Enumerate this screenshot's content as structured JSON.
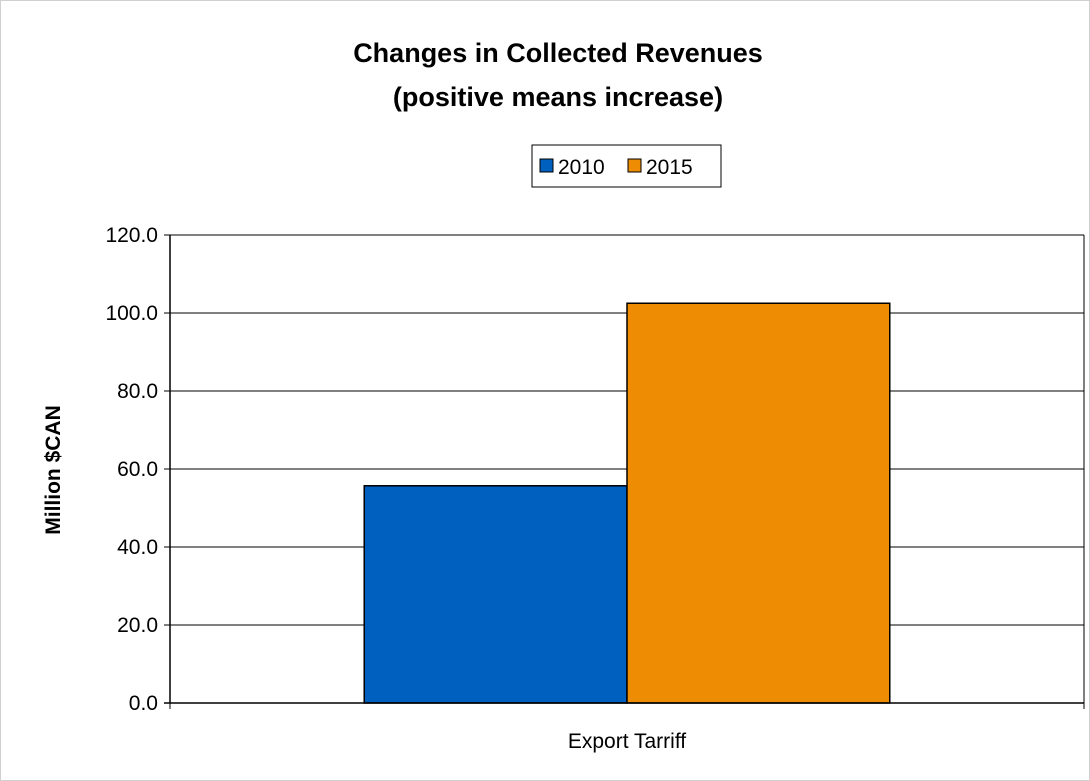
{
  "chart_data": {
    "type": "bar",
    "title": "Changes in Collected Revenues",
    "subtitle": "(positive means increase)",
    "ylabel": "Million $CAN",
    "categories": [
      "Export Tarriff"
    ],
    "series": [
      {
        "name": "2010",
        "values": [
          55.7
        ],
        "color": "#0060C0"
      },
      {
        "name": "2015",
        "values": [
          102.5
        ],
        "color": "#EE8C04"
      }
    ],
    "ylim": [
      0,
      120
    ],
    "yticks": [
      "0.0",
      "20.0",
      "40.0",
      "60.0",
      "80.0",
      "100.0",
      "120.0"
    ],
    "grid": true,
    "legend_position": "top-center"
  }
}
